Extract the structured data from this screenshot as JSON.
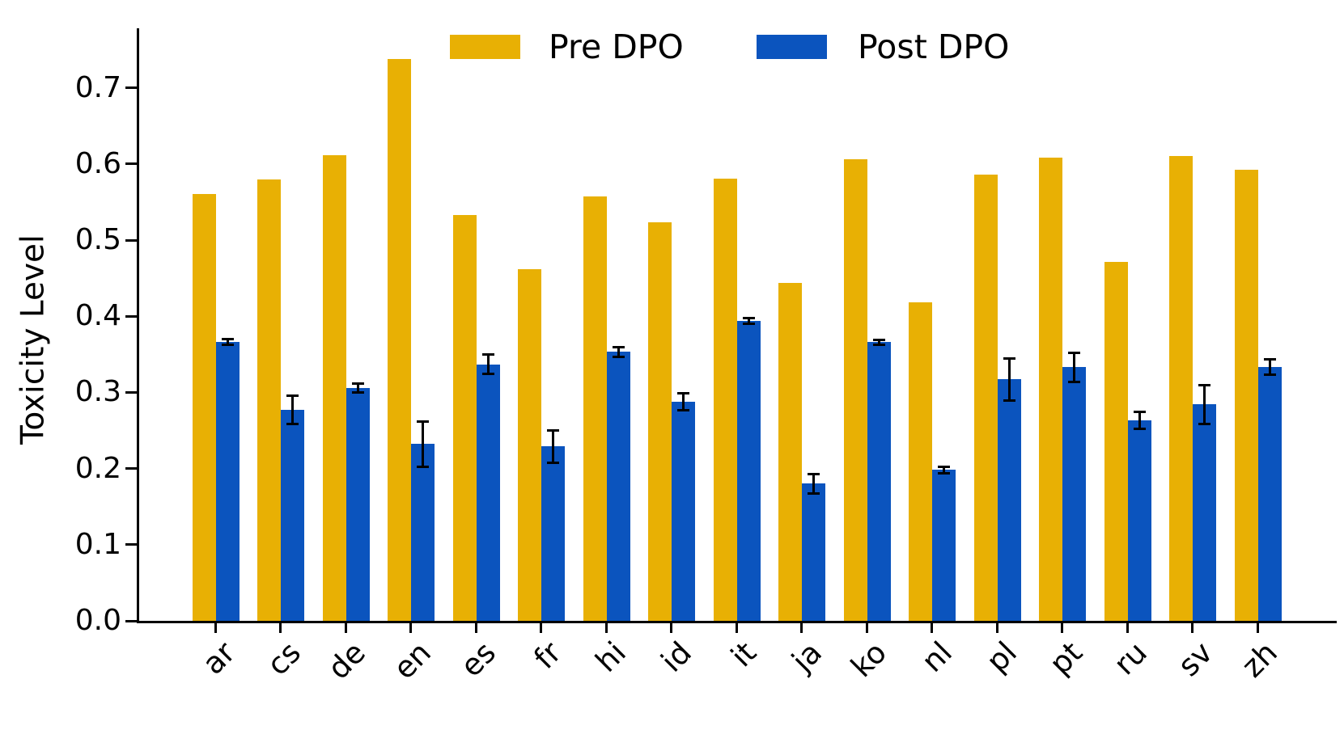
{
  "figure": {
    "ylabel": "Toxicity Level"
  },
  "legend": {
    "items": [
      {
        "label": "Pre DPO",
        "color": "#E8B004"
      },
      {
        "label": "Post DPO",
        "color": "#0B54BE"
      }
    ]
  },
  "chart_data": {
    "type": "bar",
    "title": "",
    "xlabel": "",
    "ylabel": "Toxicity Level",
    "categories": [
      "ar",
      "cs",
      "de",
      "en",
      "es",
      "fr",
      "hi",
      "id",
      "it",
      "ja",
      "ko",
      "nl",
      "pl",
      "pt",
      "ru",
      "sv",
      "zh"
    ],
    "series": [
      {
        "name": "Pre DPO",
        "color": "#E8B004",
        "values": [
          0.56,
          0.58,
          0.611,
          0.738,
          0.533,
          0.462,
          0.557,
          0.523,
          0.581,
          0.444,
          0.606,
          0.418,
          0.586,
          0.608,
          0.471,
          0.61,
          0.592
        ]
      },
      {
        "name": "Post DPO",
        "color": "#0B54BE",
        "values": [
          0.366,
          0.277,
          0.306,
          0.232,
          0.337,
          0.229,
          0.353,
          0.288,
          0.394,
          0.18,
          0.366,
          0.198,
          0.317,
          0.333,
          0.263,
          0.284,
          0.333
        ],
        "errors": [
          0.004,
          0.019,
          0.006,
          0.03,
          0.013,
          0.021,
          0.006,
          0.011,
          0.004,
          0.013,
          0.003,
          0.004,
          0.028,
          0.019,
          0.011,
          0.025,
          0.01
        ]
      }
    ],
    "ylim": [
      0.0,
      0.78
    ],
    "yticks": [
      0.0,
      0.1,
      0.2,
      0.3,
      0.4,
      0.5,
      0.6,
      0.7
    ],
    "ytick_labels": [
      "0.0",
      "0.1",
      "0.2",
      "0.3",
      "0.4",
      "0.5",
      "0.6",
      "0.7"
    ],
    "grid": false,
    "legend_position": "upper center",
    "error_bar_color": "#000000",
    "axis_color": "#000000"
  }
}
